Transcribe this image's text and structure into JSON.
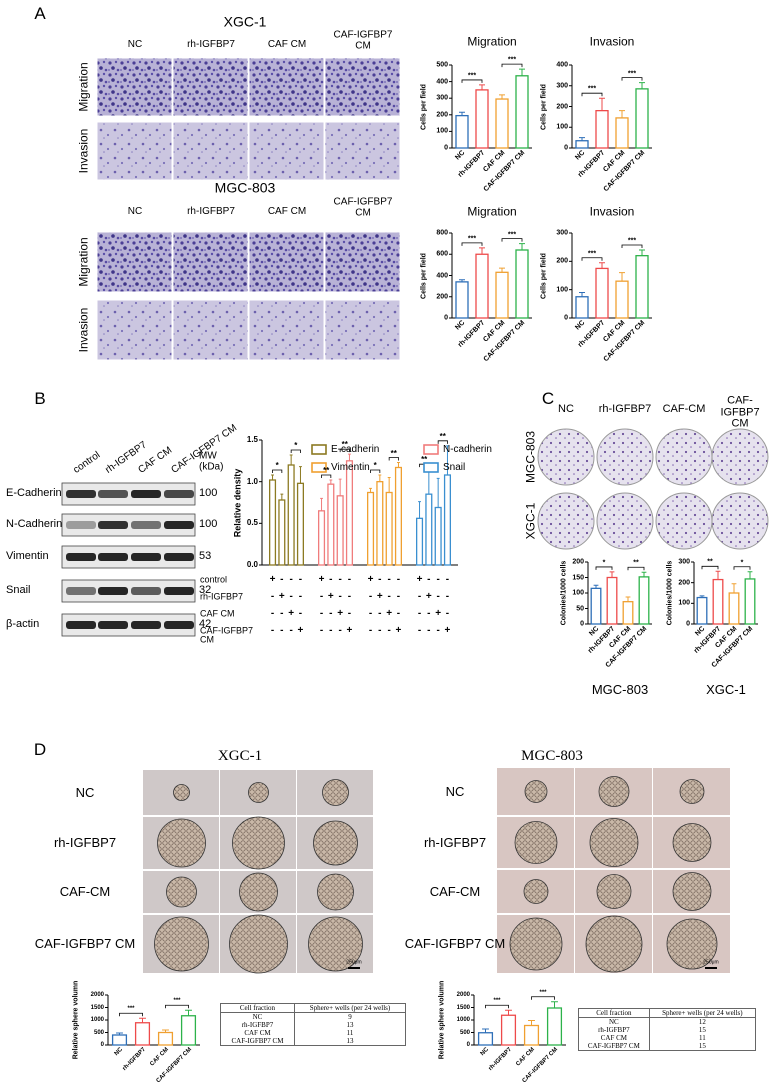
{
  "panel_labels": [
    "A",
    "B",
    "C",
    "D"
  ],
  "panel_a": {
    "titles": [
      "XGC-1",
      "MGC-803"
    ],
    "columns": [
      "NC",
      "rh-IGFBP7",
      "CAF CM",
      "CAF-IGFBP7 CM"
    ],
    "rows": [
      "Migration",
      "Invasion"
    ]
  },
  "panel_b_blot": {
    "lanes": [
      "control",
      "rh-IGFBP7",
      "CAF CM",
      "CAF-IGFBP7 CM"
    ],
    "mw_label": "MW (kDa)",
    "proteins": [
      {
        "name": "E-Cadherin",
        "mw": 100
      },
      {
        "name": "N-Cadherin",
        "mw": 100
      },
      {
        "name": "Vimentin",
        "mw": 53
      },
      {
        "name": "Snail",
        "mw": 32
      },
      {
        "name": "β-actin",
        "mw": 42
      }
    ]
  },
  "panel_c_images": {
    "columns": [
      "NC",
      "rh-IGFBP7",
      "CAF-CM",
      "CAF-IGFBP7 CM"
    ],
    "rows": [
      "MGC-803",
      "XGC-1"
    ]
  },
  "panel_d_images": [
    {
      "title": "XGC-1",
      "rows": [
        "NC",
        "rh-IGFBP7",
        "CAF-CM",
        "CAF-IGFBP7 CM"
      ],
      "scale_bar": "250μm"
    },
    {
      "title": "MGC-803",
      "rows": [
        "NC",
        "rh-IGFBP7",
        "CAF-CM",
        "CAF-IGFBP7 CM"
      ],
      "scale_bar": "250μm"
    }
  ],
  "tables": [
    {
      "headers": [
        "Cell fraction",
        "Sphere+ wells (per 24 wells)"
      ],
      "rows": [
        [
          "NC",
          9
        ],
        [
          "rh-IGFBP7",
          13
        ],
        [
          "CAF CM",
          11
        ],
        [
          "CAF-IGFBP7 CM",
          13
        ]
      ]
    },
    {
      "headers": [
        "Cell fraction",
        "Sphere+ wells (per 24 wells)"
      ],
      "rows": [
        [
          "NC",
          12
        ],
        [
          "rh-IGFBP7",
          15
        ],
        [
          "CAF CM",
          11
        ],
        [
          "CAF-IGFBP7 CM",
          15
        ]
      ]
    }
  ],
  "chart_data": [
    {
      "type": "bar",
      "title": "Migration",
      "ylabel": "Cells per field",
      "categories": [
        "NC",
        "rh-IGFBP7",
        "CAF CM",
        "CAF-IGFBP7 CM"
      ],
      "values": [
        195,
        350,
        295,
        435
      ],
      "errors": [
        20,
        30,
        25,
        40
      ],
      "colors": [
        "#2e6fb8",
        "#ee4a4a",
        "#f0a030",
        "#2db24a"
      ],
      "ylim": [
        0,
        500
      ],
      "yticks": [
        0,
        100,
        200,
        300,
        400,
        500
      ],
      "significance": [
        "***",
        "***"
      ]
    },
    {
      "type": "bar",
      "title": "Invasion",
      "ylabel": "Cells per field",
      "categories": [
        "NC",
        "rh-IGFBP7",
        "CAF CM",
        "CAF-IGFBP7 CM"
      ],
      "values": [
        35,
        180,
        145,
        285
      ],
      "errors": [
        15,
        60,
        35,
        30
      ],
      "colors": [
        "#2e6fb8",
        "#ee4a4a",
        "#f0a030",
        "#2db24a"
      ],
      "ylim": [
        0,
        400
      ],
      "yticks": [
        0,
        100,
        200,
        300,
        400
      ],
      "significance": [
        "***",
        "***"
      ]
    },
    {
      "type": "bar",
      "title": "Migration",
      "ylabel": "Cells per field",
      "categories": [
        "NC",
        "rh-IGFBP7",
        "CAF CM",
        "CAF-IGFBP7 CM"
      ],
      "values": [
        340,
        600,
        430,
        640
      ],
      "errors": [
        20,
        60,
        40,
        60
      ],
      "colors": [
        "#2e6fb8",
        "#ee4a4a",
        "#f0a030",
        "#2db24a"
      ],
      "ylim": [
        0,
        800
      ],
      "yticks": [
        0,
        200,
        400,
        600,
        800
      ],
      "significance": [
        "***",
        "***"
      ]
    },
    {
      "type": "bar",
      "title": "Invasion",
      "ylabel": "Cells per field",
      "categories": [
        "NC",
        "rh-IGFBP7",
        "CAF CM",
        "CAF-IGFBP7 CM"
      ],
      "values": [
        75,
        175,
        130,
        220
      ],
      "errors": [
        15,
        20,
        30,
        20
      ],
      "colors": [
        "#2e6fb8",
        "#ee4a4a",
        "#f0a030",
        "#2db24a"
      ],
      "ylim": [
        0,
        300
      ],
      "yticks": [
        0,
        100,
        200,
        300
      ],
      "significance": [
        "***",
        "***"
      ]
    },
    {
      "type": "grouped-bar",
      "ylabel": "Relative density",
      "categories": [
        "control",
        "rh-IGFBP7",
        "CAF CM",
        "CAF-IGFBP7 CM"
      ],
      "series": [
        {
          "name": "E-cadherin",
          "color": "#8c7a22",
          "values": [
            1.02,
            0.78,
            1.2,
            0.98
          ],
          "errors": [
            0.06,
            0.07,
            0.12,
            0.2
          ]
        },
        {
          "name": "N-cadherin",
          "color": "#f07c7c",
          "values": [
            0.65,
            0.97,
            0.83,
            1.25
          ],
          "errors": [
            0.15,
            0.05,
            0.2,
            0.08
          ]
        },
        {
          "name": "Vimentin",
          "color": "#f0a030",
          "values": [
            0.87,
            1.0,
            0.87,
            1.17
          ],
          "errors": [
            0.05,
            0.08,
            0.18,
            0.06
          ]
        },
        {
          "name": "Snail",
          "color": "#3a8fd0",
          "values": [
            0.56,
            0.85,
            0.69,
            1.08
          ],
          "errors": [
            0.2,
            0.3,
            0.35,
            0.35
          ]
        }
      ],
      "ylim": [
        0,
        1.5
      ],
      "yticks": [
        {
          "value": 0,
          "label": "0.0"
        },
        0.5,
        {
          "value": 1,
          "label": "1.0"
        },
        1.5
      ],
      "significance": [
        "*",
        "*",
        "**",
        "**",
        "*",
        "**",
        "**",
        "**"
      ],
      "treatment_rows": [
        {
          "label": "control",
          "signs": [
            "+",
            "-",
            "-",
            "-"
          ]
        },
        {
          "label": "rh-IGFBP7",
          "signs": [
            "-",
            "+",
            "-",
            "-"
          ]
        },
        {
          "label": "CAF CM",
          "signs": [
            "-",
            "-",
            "+",
            "-"
          ]
        },
        {
          "label": "CAF-IGFBP7 CM",
          "signs": [
            "-",
            "-",
            "-",
            "+"
          ]
        }
      ]
    },
    {
      "type": "bar",
      "title": "MGC-803",
      "ylabel": "Colonies/1000 cells",
      "categories": [
        "NC",
        "rh-IGFBP7",
        "CAF CM",
        "CAF-IGFBP7 CM"
      ],
      "values": [
        115,
        150,
        72,
        152
      ],
      "errors": [
        10,
        18,
        15,
        15
      ],
      "colors": [
        "#2e6fb8",
        "#ee4a4a",
        "#f0a030",
        "#2db24a"
      ],
      "ylim": [
        0,
        200
      ],
      "yticks": [
        0,
        50,
        100,
        150,
        200
      ],
      "significance": [
        "*",
        "**"
      ]
    },
    {
      "type": "bar",
      "title": "XGC-1",
      "ylabel": "Colonies/1000 cells",
      "categories": [
        "NC",
        "rh-IGFBP7",
        "CAF CM",
        "CAF-IGFBP7 CM"
      ],
      "values": [
        128,
        215,
        150,
        218
      ],
      "errors": [
        8,
        40,
        45,
        35
      ],
      "colors": [
        "#2e6fb8",
        "#ee4a4a",
        "#f0a030",
        "#2db24a"
      ],
      "ylim": [
        0,
        300
      ],
      "yticks": [
        0,
        100,
        200,
        300
      ],
      "significance": [
        "**",
        "*"
      ]
    },
    {
      "type": "bar",
      "ylabel": "Relative sphere volumn",
      "categories": [
        "NC",
        "rh-IGFBP7",
        "CAF CM",
        "CAF-IGFBP7 CM"
      ],
      "values": [
        400,
        890,
        500,
        1170
      ],
      "errors": [
        80,
        180,
        100,
        220
      ],
      "colors": [
        "#2e6fb8",
        "#ee4a4a",
        "#f0a030",
        "#2db24a"
      ],
      "ylim": [
        0,
        2000
      ],
      "yticks": [
        0,
        500,
        1000,
        1500,
        2000
      ],
      "significance": [
        "***",
        "***"
      ]
    },
    {
      "type": "bar",
      "ylabel": "Relative sphere volumn",
      "categories": [
        "NC",
        "rh-IGFBP7",
        "CAF CM",
        "CAF-IGFBP7 CM"
      ],
      "values": [
        490,
        1190,
        780,
        1480
      ],
      "errors": [
        150,
        200,
        200,
        250
      ],
      "colors": [
        "#2e6fb8",
        "#ee4a4a",
        "#f0a030",
        "#2db24a"
      ],
      "ylim": [
        0,
        2000
      ],
      "yticks": [
        0,
        500,
        1000,
        1500,
        2000
      ],
      "significance": [
        "***",
        "***"
      ]
    }
  ]
}
